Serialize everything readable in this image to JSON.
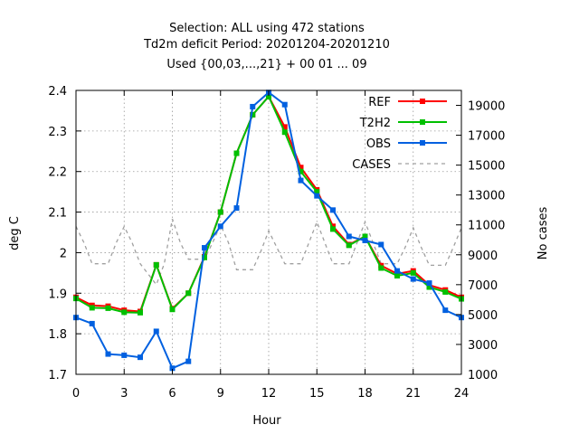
{
  "chart_data": {
    "type": "line",
    "title_lines": [
      "Selection: ALL using   472 stations",
      "Td2m deficit   Period: 20201204-20201210",
      "Used {00,03,...,21} + 00 01 ... 09"
    ],
    "xlabel": "Hour",
    "ylabel": "deg C",
    "y2label": "No cases",
    "xlim": [
      0,
      24
    ],
    "ylim": [
      1.7,
      2.4
    ],
    "y2lim": [
      1000,
      20000
    ],
    "x_ticks": [
      0,
      3,
      6,
      9,
      12,
      15,
      18,
      21,
      24
    ],
    "y_ticks": [
      "1.7",
      "1.8",
      "1.9",
      "2",
      "2.1",
      "2.2",
      "2.3",
      "2.4"
    ],
    "y2_ticks": [
      1000,
      3000,
      5000,
      7000,
      9000,
      11000,
      13000,
      15000,
      17000,
      19000
    ],
    "grid": true,
    "legend_position": "top-right",
    "x": [
      0,
      1,
      2,
      3,
      4,
      5,
      6,
      7,
      8,
      9,
      10,
      11,
      12,
      13,
      14,
      15,
      16,
      17,
      18,
      19,
      20,
      21,
      22,
      23,
      24
    ],
    "series": [
      {
        "name": "REF",
        "color": "#ff0000",
        "style": "line-points",
        "values": [
          1.89,
          1.87,
          1.868,
          1.858,
          1.855,
          1.97,
          1.862,
          1.9,
          1.99,
          2.1,
          2.245,
          2.34,
          2.385,
          2.31,
          2.21,
          2.155,
          2.065,
          2.02,
          2.04,
          1.968,
          1.948,
          1.955,
          1.92,
          1.908,
          1.89
        ]
      },
      {
        "name": "T2H2",
        "color": "#00c000",
        "style": "line-points",
        "values": [
          1.887,
          1.864,
          1.863,
          1.853,
          1.852,
          1.97,
          1.86,
          1.9,
          1.988,
          2.1,
          2.245,
          2.34,
          2.385,
          2.297,
          2.2,
          2.15,
          2.058,
          2.018,
          2.04,
          1.962,
          1.943,
          1.95,
          1.915,
          1.903,
          1.886
        ]
      },
      {
        "name": "OBS",
        "color": "#0060e0",
        "style": "line-points",
        "values": [
          1.84,
          1.825,
          1.75,
          1.747,
          1.742,
          1.806,
          1.715,
          1.732,
          2.012,
          2.065,
          2.11,
          2.36,
          2.395,
          2.365,
          2.178,
          2.14,
          2.105,
          2.04,
          2.03,
          2.02,
          1.955,
          1.935,
          1.925,
          1.858,
          1.84
        ]
      },
      {
        "name": "CASES",
        "color": "#a0a0a0",
        "style": "dashed",
        "axis": "y2",
        "x": [
          0,
          0.5,
          1,
          2,
          2.5,
          3,
          3.5,
          4,
          5,
          5.5,
          6,
          6.5,
          7,
          8,
          8.5,
          9,
          9.5,
          10,
          11,
          11.5,
          12,
          12.5,
          13,
          14,
          14.5,
          15,
          15.5,
          16,
          17,
          17.5,
          18,
          18.5,
          19,
          20,
          20.5,
          21,
          21.5,
          22,
          23,
          23.5,
          24
        ],
        "values": [
          10900,
          9800,
          8400,
          8400,
          9800,
          10900,
          9800,
          8400,
          7000,
          8400,
          11400,
          9800,
          8700,
          8700,
          9800,
          11000,
          9800,
          8000,
          8000,
          9200,
          10600,
          9500,
          8400,
          8400,
          9800,
          11200,
          9800,
          8400,
          8400,
          9800,
          11200,
          9800,
          8400,
          8400,
          9500,
          10800,
          9500,
          8300,
          8300,
          9500,
          10800
        ]
      }
    ]
  }
}
